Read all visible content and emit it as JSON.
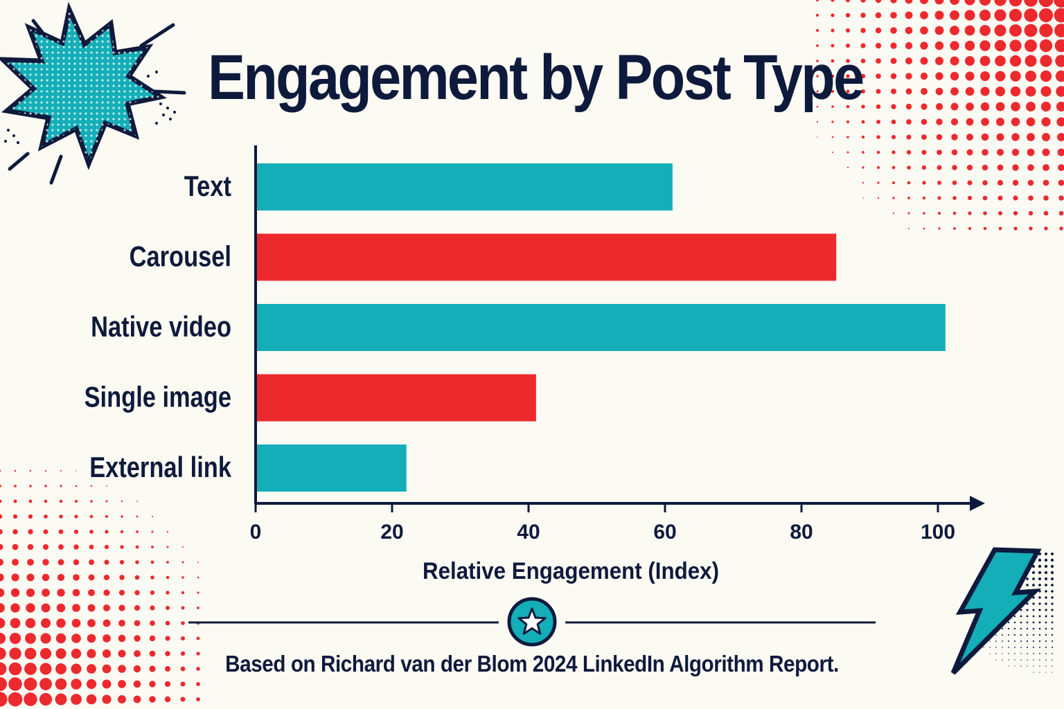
{
  "colors": {
    "background": "#fbfaf3",
    "navy": "#0e1a3c",
    "teal": "#14aeb8",
    "red": "#ec2a2e"
  },
  "icons": {
    "top_left": "comic-burst-icon",
    "footer_center": "star-icon",
    "bottom_right": "lightning-bolt-icon",
    "decor": "halftone-dots"
  },
  "chart_data": {
    "type": "bar",
    "orientation": "horizontal",
    "title": "Engagement by Post Type",
    "xlabel": "Relative Engagement (Index)",
    "ylabel": "",
    "categories": [
      "Text",
      "Carousel",
      "Native video",
      "Single image",
      "External link"
    ],
    "values": [
      61,
      85,
      101,
      41,
      22
    ],
    "bar_colors": [
      "#14aeb8",
      "#ec2a2e",
      "#14aeb8",
      "#ec2a2e",
      "#14aeb8"
    ],
    "xlim": [
      0,
      105
    ],
    "xticks": [
      0,
      20,
      40,
      60,
      80,
      100
    ],
    "grid": false,
    "legend": "none",
    "footnote": "Based on Richard van der Blom 2024 LinkedIn Algorithm Report."
  }
}
